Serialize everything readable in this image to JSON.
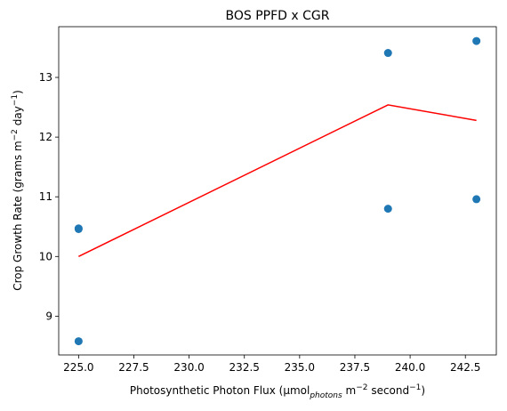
{
  "chart_data": {
    "type": "scatter",
    "title": "BOS PPFD x CGR",
    "xlabel": {
      "text": "Photosynthetic Photon Flux (μmol",
      "sub": "photons",
      "mid": " m",
      "sup1": "−2",
      "tail": " second",
      "sup2": "−1",
      "end": ")"
    },
    "ylabel": {
      "text": "Crop Growth Rate (grams m",
      "sup1": "−2",
      "mid": " day",
      "sup2": "−1",
      "end": ")"
    },
    "xlim": [
      224.1,
      243.9
    ],
    "ylim": [
      8.35,
      13.85
    ],
    "x_ticks": [
      225.0,
      227.5,
      230.0,
      232.5,
      235.0,
      237.5,
      240.0,
      242.5
    ],
    "x_tick_labels": [
      "225.0",
      "227.5",
      "230.0",
      "232.5",
      "235.0",
      "237.5",
      "240.0",
      "242.5"
    ],
    "y_ticks": [
      9,
      10,
      11,
      12,
      13
    ],
    "y_tick_labels": [
      "9",
      "10",
      "11",
      "12",
      "13"
    ],
    "grid": false,
    "series": [
      {
        "kind": "scatter",
        "color": "#1f77b4",
        "points": [
          {
            "x": 225.0,
            "y": 10.47
          },
          {
            "x": 225.0,
            "y": 10.46
          },
          {
            "x": 225.0,
            "y": 8.58
          },
          {
            "x": 239.0,
            "y": 13.41
          },
          {
            "x": 239.0,
            "y": 10.8
          },
          {
            "x": 243.0,
            "y": 13.61
          },
          {
            "x": 243.0,
            "y": 10.96
          }
        ]
      },
      {
        "kind": "line",
        "color": "#ff0000",
        "points": [
          {
            "x": 225.0,
            "y": 10.0
          },
          {
            "x": 239.0,
            "y": 12.54
          },
          {
            "x": 243.0,
            "y": 12.28
          }
        ]
      }
    ]
  }
}
